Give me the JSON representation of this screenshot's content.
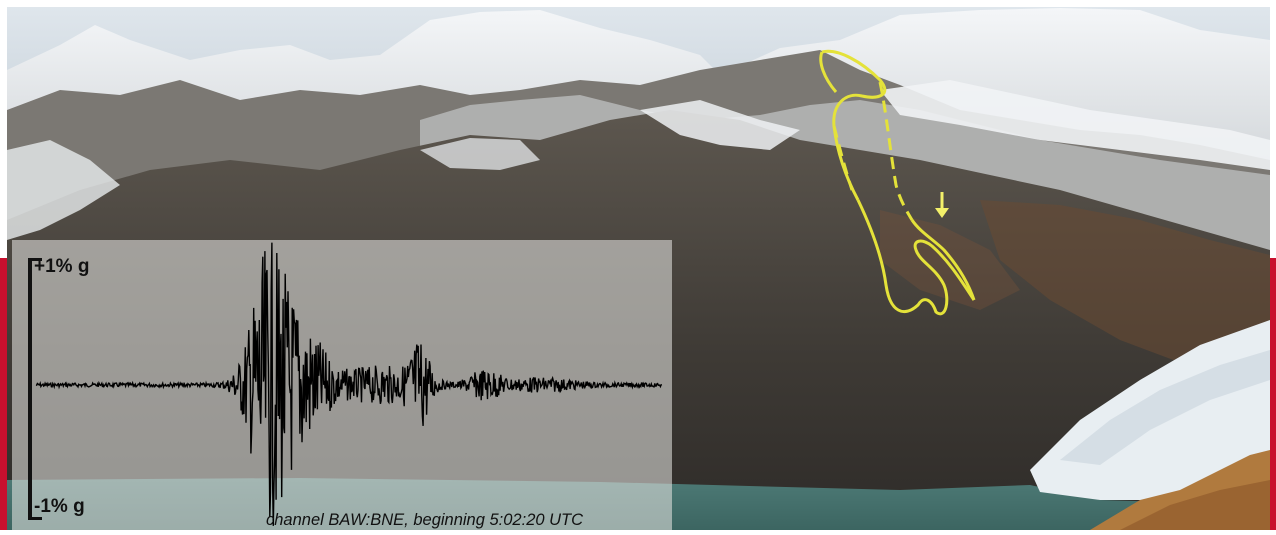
{
  "figure": {
    "seismogram": {
      "upper_label": "+1% g",
      "lower_label": "-1% g",
      "caption": "channel BAW:BNE, beginning 5:02:20 UTC"
    },
    "colors": {
      "trace": "#000000",
      "annotation": "#e4e23a",
      "accent_edge": "#c8102e"
    }
  }
}
